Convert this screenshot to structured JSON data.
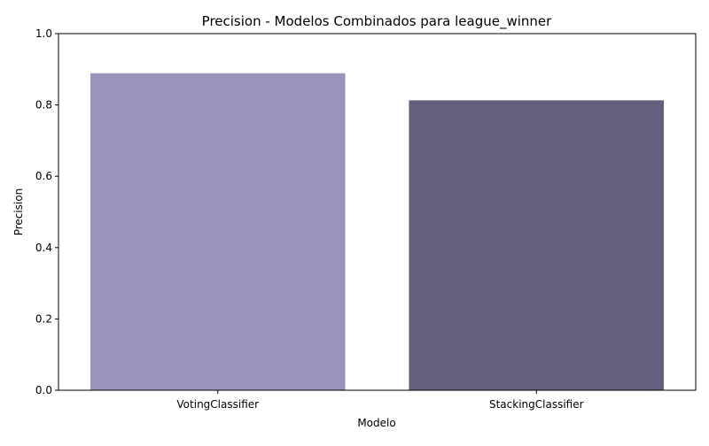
{
  "chart_data": {
    "type": "bar",
    "title": "Precision - Modelos Combinados para league_winner",
    "xlabel": "Modelo",
    "ylabel": "Precision",
    "categories": [
      "VotingClassifier",
      "StackingClassifier"
    ],
    "values": [
      0.889,
      0.813
    ],
    "colors": [
      "#9994bb",
      "#645f7f"
    ],
    "ylim": [
      0,
      1
    ],
    "yticks": [
      0.0,
      0.2,
      0.4,
      0.6,
      0.8,
      1.0
    ],
    "ytick_labels": [
      "0.0",
      "0.2",
      "0.4",
      "0.6",
      "0.8",
      "1.0"
    ],
    "grid": false,
    "legend": "none"
  }
}
